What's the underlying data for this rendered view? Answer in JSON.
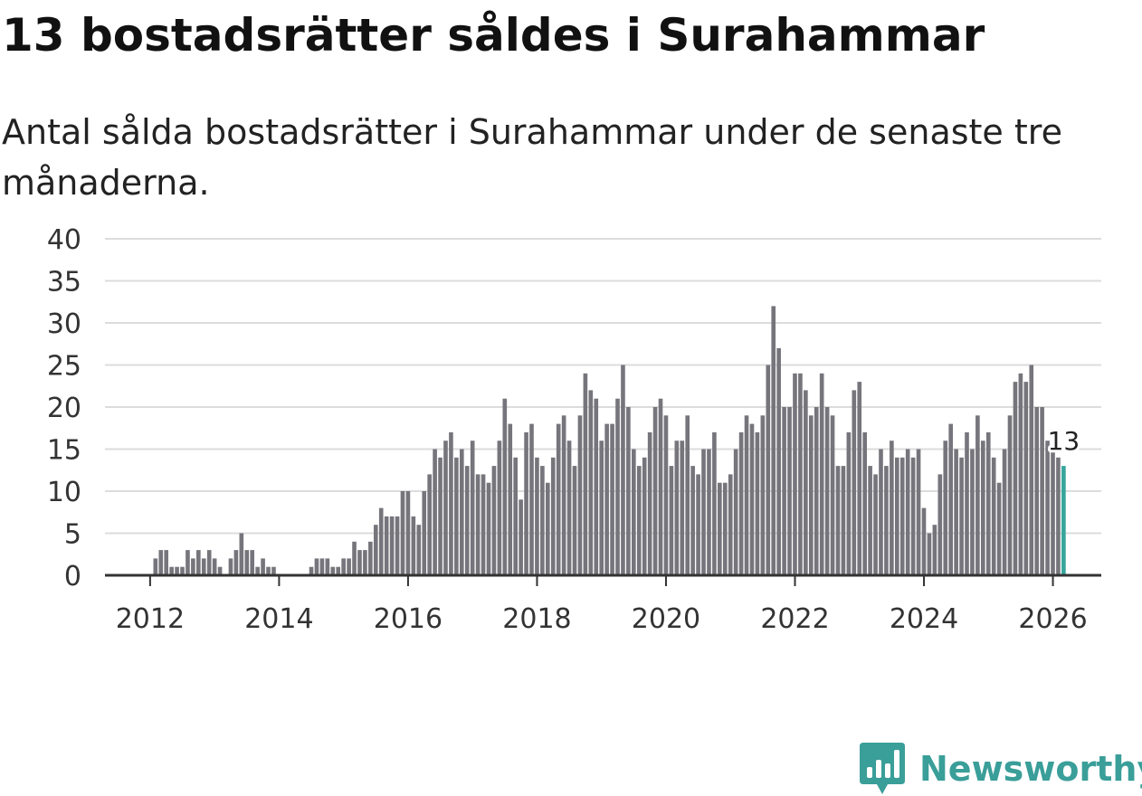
{
  "chart_data": {
    "type": "bar",
    "title": "13 bostadsrätter såldes i Surahammar",
    "subtitle": "Antal sålda bostadsrätter i Surahammar under de senaste tre månaderna.",
    "xlabel": "",
    "ylabel": "",
    "ylim": [
      0,
      40
    ],
    "yticks": [
      0,
      5,
      10,
      15,
      20,
      25,
      30,
      35,
      40
    ],
    "xlim": [
      2011.3,
      2026.75
    ],
    "xticks": [
      2012,
      2014,
      2016,
      2018,
      2020,
      2022,
      2024,
      2026
    ],
    "grid": true,
    "bar_color": "#76757c",
    "highlight_color": "#36a59c",
    "start": 2011.5,
    "step": 0.08333,
    "values": [
      0,
      0,
      0,
      0,
      0,
      0,
      0,
      2,
      3,
      3,
      1,
      1,
      1,
      3,
      2,
      3,
      2,
      3,
      2,
      1,
      0,
      2,
      3,
      5,
      3,
      3,
      1,
      2,
      1,
      1,
      0,
      0,
      0,
      0,
      0,
      0,
      1,
      2,
      2,
      2,
      1,
      1,
      2,
      2,
      4,
      3,
      3,
      4,
      6,
      8,
      7,
      7,
      7,
      10,
      10,
      7,
      6,
      10,
      12,
      15,
      14,
      16,
      17,
      14,
      15,
      13,
      16,
      12,
      12,
      11,
      13,
      16,
      21,
      18,
      14,
      9,
      17,
      18,
      14,
      13,
      11,
      14,
      18,
      19,
      16,
      13,
      19,
      24,
      22,
      21,
      16,
      18,
      18,
      21,
      25,
      20,
      15,
      13,
      14,
      17,
      20,
      21,
      19,
      13,
      16,
      16,
      19,
      13,
      12,
      15,
      15,
      17,
      11,
      11,
      12,
      15,
      17,
      19,
      18,
      17,
      19,
      25,
      32,
      27,
      20,
      20,
      24,
      24,
      22,
      19,
      20,
      24,
      20,
      19,
      13,
      13,
      17,
      22,
      23,
      17,
      13,
      12,
      15,
      13,
      16,
      14,
      14,
      15,
      14,
      15,
      8,
      5,
      6,
      12,
      16,
      18,
      15,
      14,
      17,
      15,
      19,
      16,
      17,
      14,
      11,
      15,
      19,
      23,
      24,
      23,
      25,
      20,
      20,
      16,
      15,
      14,
      13
    ],
    "annotation": {
      "label": "13",
      "value": 13
    }
  },
  "branding": {
    "name": "Newsworthy",
    "logo_icon": "newsworthy-logo-icon",
    "color": "#3a9e99"
  }
}
